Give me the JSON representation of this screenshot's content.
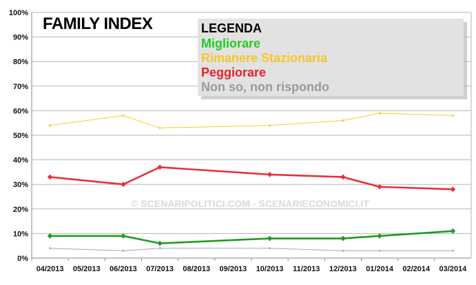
{
  "chart_data": {
    "type": "line",
    "title": "FAMILY INDEX",
    "watermark": "© SCENARIPOLITICI.COM - SCENARIECONOMICI.IT",
    "categories": [
      "04/2013",
      "05/2013",
      "06/2013",
      "07/2013",
      "08/2013",
      "09/2013",
      "10/2013",
      "11/2013",
      "12/2013",
      "01/2014",
      "02/2014",
      "03/2014"
    ],
    "y_ticks": [
      "0%",
      "10%",
      "20%",
      "30%",
      "40%",
      "50%",
      "60%",
      "70%",
      "80%",
      "90%",
      "100%"
    ],
    "ylim": [
      0,
      100
    ],
    "grid": true,
    "legend": {
      "title": "LEGENDA",
      "placement": "top-right",
      "items": [
        "Migliorare",
        "Rimanere Stazionaria",
        "Peggiorare",
        "Non so, non rispondo"
      ]
    },
    "series": [
      {
        "name": "Migliorare",
        "color": "#1f9b1f",
        "values": [
          9,
          null,
          9,
          6,
          null,
          null,
          8,
          null,
          8,
          9,
          null,
          11
        ]
      },
      {
        "name": "Rimanere Stazionaria",
        "color": "#f2cf1c",
        "values": [
          54,
          null,
          58,
          53,
          null,
          null,
          54,
          null,
          56,
          59,
          null,
          58
        ]
      },
      {
        "name": "Peggiorare",
        "color": "#e8303a",
        "values": [
          33,
          null,
          30,
          37,
          null,
          null,
          34,
          null,
          33,
          29,
          null,
          28
        ]
      },
      {
        "name": "Non so, non rispondo",
        "color": "#a6a6a6",
        "values": [
          4,
          null,
          3,
          4,
          null,
          null,
          4,
          null,
          3,
          3,
          null,
          3
        ]
      }
    ],
    "legend_colors": [
      "#22cc22",
      "#f7c62a",
      "#e8202a",
      "#9a9a9a"
    ]
  }
}
